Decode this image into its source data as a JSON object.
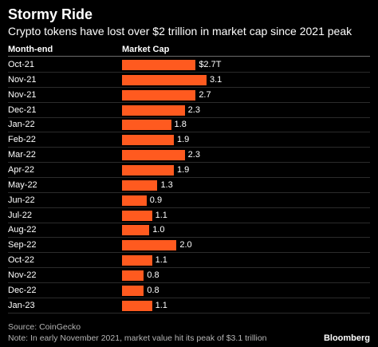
{
  "chart_data": {
    "type": "bar",
    "orientation": "horizontal",
    "title": "Stormy Ride",
    "subtitle": "Crypto tokens have lost over $2 trillion in market cap since 2021 peak",
    "category_header": "Month-end",
    "value_header": "Market Cap",
    "categories": [
      "Oct-21",
      "Nov-21",
      "Nov-21",
      "Dec-21",
      "Jan-22",
      "Feb-22",
      "Mar-22",
      "Apr-22",
      "May-22",
      "Jun-22",
      "Jul-22",
      "Aug-22",
      "Sep-22",
      "Oct-22",
      "Nov-22",
      "Dec-22",
      "Jan-23"
    ],
    "values": [
      2.7,
      3.1,
      2.7,
      2.3,
      1.8,
      1.9,
      2.3,
      1.9,
      1.3,
      0.9,
      1.1,
      1.0,
      2.0,
      1.1,
      0.8,
      0.8,
      1.1
    ],
    "value_labels": [
      "$2.7T",
      "3.1",
      "2.7",
      "2.3",
      "1.8",
      "1.9",
      "2.3",
      "1.9",
      "1.3",
      "0.9",
      "1.1",
      "1.0",
      "2.0",
      "1.1",
      "0.8",
      "0.8",
      "1.1"
    ],
    "xlim": [
      0,
      3.1
    ],
    "bar_color": "#ff5a1f",
    "source": "Source: CoinGecko",
    "note": "Note: In early November 2021, market value hit its peak of $3.1 trillion",
    "brand": "Bloomberg"
  }
}
